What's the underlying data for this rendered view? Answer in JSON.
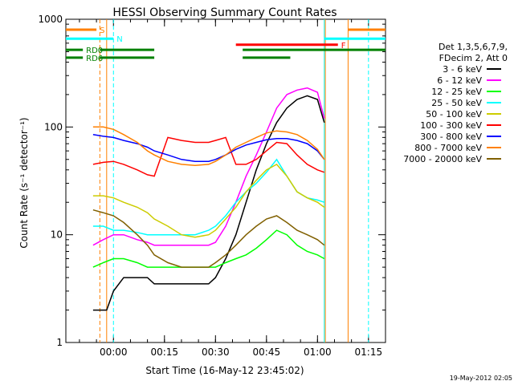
{
  "chart_data": {
    "type": "line",
    "title": "HESSI Observing Summary Count Rates",
    "xlabel": "Start Time (16-May-12 23:45:02)",
    "ylabel": "Count Rate (s⁻¹ detector⁻¹)",
    "yscale": "log",
    "ylim": [
      1,
      1000
    ],
    "xlim_min": [
      -14,
      80
    ],
    "x_unit": "minutes after 2012-05-17 00:00",
    "yticks": [
      {
        "v": 1,
        "label": "1"
      },
      {
        "v": 10,
        "label": "10"
      },
      {
        "v": 100,
        "label": "100"
      },
      {
        "v": 1000,
        "label": "1000"
      }
    ],
    "xticks": [
      {
        "v": 0,
        "label": "00:00"
      },
      {
        "v": 15,
        "label": "00:15"
      },
      {
        "v": 30,
        "label": "00:30"
      },
      {
        "v": 45,
        "label": "00:45"
      },
      {
        "v": 60,
        "label": "01:00"
      },
      {
        "v": 75,
        "label": "01:15"
      }
    ],
    "legend": {
      "header": [
        "Det 1,3,5,6,7,9,",
        "FDecim 2, Att 0"
      ],
      "placement": "right"
    },
    "series": [
      {
        "name": "3 - 6 keV",
        "color": "#000000",
        "x": [
          -6,
          -2,
          0,
          3,
          7,
          10,
          12,
          16,
          20,
          24,
          28,
          30,
          33,
          36,
          39,
          42,
          45,
          48,
          51,
          54,
          57,
          60,
          62
        ],
        "y": [
          2,
          2,
          3,
          4,
          4,
          4,
          3.5,
          3.5,
          3.5,
          3.5,
          3.5,
          4,
          6,
          10,
          20,
          40,
          70,
          110,
          150,
          180,
          195,
          180,
          110
        ]
      },
      {
        "name": "6 - 12 keV",
        "color": "#ff00ff",
        "x": [
          -6,
          -3,
          0,
          3,
          7,
          10,
          12,
          16,
          20,
          24,
          28,
          30,
          33,
          36,
          39,
          42,
          45,
          48,
          51,
          54,
          57,
          60,
          62
        ],
        "y": [
          8,
          9,
          10,
          10,
          9,
          8.5,
          8,
          8,
          8,
          8,
          8,
          8.5,
          12,
          20,
          35,
          55,
          90,
          150,
          200,
          220,
          230,
          210,
          120
        ]
      },
      {
        "name": "12 - 25 keV",
        "color": "#00ff00",
        "x": [
          -6,
          -3,
          0,
          3,
          7,
          10,
          12,
          16,
          20,
          24,
          28,
          30,
          33,
          36,
          39,
          42,
          45,
          48,
          51,
          54,
          57,
          60,
          62
        ],
        "y": [
          5,
          5.5,
          6,
          6,
          5.5,
          5,
          5,
          5,
          5,
          5,
          5,
          5,
          5.5,
          6,
          6.5,
          7.5,
          9,
          11,
          10,
          8,
          7,
          6.5,
          6
        ]
      },
      {
        "name": "25 - 50 keV",
        "color": "#00ffff",
        "x": [
          -6,
          -3,
          0,
          3,
          7,
          10,
          12,
          16,
          20,
          24,
          28,
          30,
          33,
          36,
          39,
          42,
          45,
          48,
          51,
          54,
          57,
          60,
          62
        ],
        "y": [
          12,
          12,
          11,
          11,
          10.5,
          10,
          10,
          10,
          10,
          10,
          11,
          12,
          15,
          20,
          25,
          30,
          38,
          50,
          35,
          25,
          22,
          21,
          20
        ]
      },
      {
        "name": "50 - 100 keV",
        "color": "#cccc00",
        "x": [
          -6,
          -3,
          0,
          3,
          7,
          10,
          12,
          16,
          20,
          24,
          28,
          30,
          33,
          36,
          39,
          42,
          45,
          48,
          51,
          54,
          57,
          60,
          62
        ],
        "y": [
          23,
          23,
          22,
          20,
          18,
          16,
          14,
          12,
          10,
          9.5,
          10,
          11,
          14,
          18,
          25,
          32,
          40,
          45,
          35,
          25,
          22,
          20,
          18
        ]
      },
      {
        "name": "100 - 300 keV",
        "color": "#ff0000",
        "x": [
          -6,
          -3,
          0,
          3,
          7,
          10,
          12,
          16,
          20,
          24,
          28,
          30,
          33,
          36,
          39,
          42,
          45,
          48,
          51,
          54,
          57,
          60,
          62
        ],
        "y": [
          45,
          47,
          48,
          45,
          40,
          36,
          35,
          80,
          75,
          72,
          72,
          75,
          80,
          45,
          45,
          50,
          60,
          72,
          70,
          55,
          45,
          40,
          38
        ]
      },
      {
        "name": "300 - 800 keV",
        "color": "#0000ff",
        "x": [
          -6,
          -3,
          0,
          3,
          7,
          10,
          12,
          16,
          20,
          24,
          28,
          30,
          33,
          36,
          39,
          42,
          45,
          48,
          51,
          54,
          57,
          60,
          62
        ],
        "y": [
          85,
          82,
          80,
          75,
          70,
          65,
          60,
          55,
          50,
          48,
          48,
          50,
          55,
          62,
          68,
          72,
          76,
          78,
          78,
          75,
          70,
          60,
          50
        ]
      },
      {
        "name": "800 - 7000 keV",
        "color": "#ff8000",
        "x": [
          -6,
          -3,
          0,
          3,
          7,
          10,
          12,
          16,
          20,
          24,
          28,
          30,
          33,
          36,
          39,
          42,
          45,
          48,
          51,
          54,
          57,
          60,
          62
        ],
        "y": [
          100,
          100,
          95,
          85,
          72,
          60,
          55,
          48,
          45,
          44,
          45,
          48,
          55,
          65,
          72,
          80,
          88,
          92,
          90,
          85,
          75,
          62,
          50
        ]
      },
      {
        "name": "7000 - 20000 keV",
        "color": "#806000",
        "x": [
          -6,
          -3,
          0,
          3,
          7,
          10,
          12,
          16,
          20,
          24,
          28,
          30,
          33,
          36,
          39,
          42,
          45,
          48,
          51,
          54,
          57,
          60,
          62
        ],
        "y": [
          17,
          16,
          15,
          13,
          10,
          8,
          6.5,
          5.5,
          5,
          5,
          5,
          5.5,
          6.5,
          8,
          10,
          12,
          14,
          15,
          13,
          11,
          10,
          9,
          8
        ]
      }
    ],
    "state_bars": [
      {
        "label": "S",
        "color": "#ff8000",
        "segments": [
          [
            -14,
            -5
          ],
          [
            69,
            80
          ]
        ],
        "y": 800
      },
      {
        "label": "N",
        "color": "#00ffff",
        "segments": [
          [
            -14,
            0
          ],
          [
            62,
            80
          ]
        ],
        "y": 660
      },
      {
        "label": "F",
        "color": "#ff0000",
        "segments": [
          [
            36,
            66
          ]
        ],
        "y": 580
      },
      {
        "label": "RD0",
        "color": "#008000",
        "segments": [
          [
            -14,
            -9
          ],
          [
            -4,
            12
          ],
          [
            38,
            80
          ]
        ],
        "y": 520
      },
      {
        "label": "RD6",
        "color": "#008000",
        "segments": [
          [
            -14,
            -9
          ],
          [
            -4,
            12
          ],
          [
            38,
            52
          ]
        ],
        "y": 440
      }
    ],
    "vlines": [
      {
        "x": -4,
        "color": "#ff8000",
        "dash": true
      },
      {
        "x": 0,
        "color": "#00ffff",
        "dash": true
      },
      {
        "x": -2,
        "color": "#ff8000",
        "dash": false
      },
      {
        "x": 62,
        "color": "#00ffff",
        "dash": false
      },
      {
        "x": 62.3,
        "color": "#ff8000",
        "dash": false
      },
      {
        "x": 69,
        "color": "#ff8000",
        "dash": false
      },
      {
        "x": 75,
        "color": "#00ffff",
        "dash": true
      }
    ],
    "timestamp": "19-May-2012 02:05"
  }
}
